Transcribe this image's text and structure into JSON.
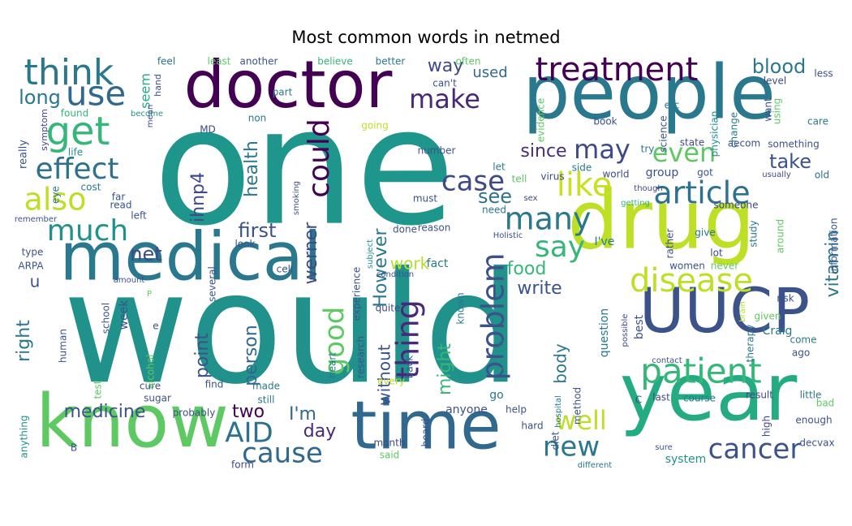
{
  "chart_data": {
    "type": "wordcloud",
    "title": "Most common words in netmed",
    "colormap": "viridis",
    "words": [
      {
        "text": "would",
        "weight": 1.0,
        "color": "#21918c"
      },
      {
        "text": "one",
        "weight": 0.95,
        "color": "#1f968b"
      },
      {
        "text": "people",
        "weight": 0.62,
        "color": "#2a788e"
      },
      {
        "text": "doctor",
        "weight": 0.55,
        "color": "#440154"
      },
      {
        "text": "drug",
        "weight": 0.6,
        "color": "#bddf26"
      },
      {
        "text": "year",
        "weight": 0.6,
        "color": "#25ab82"
      },
      {
        "text": "medical",
        "weight": 0.56,
        "color": "#2a788e"
      },
      {
        "text": "know",
        "weight": 0.5,
        "color": "#5ec962"
      },
      {
        "text": "time",
        "weight": 0.55,
        "color": "#31688e"
      },
      {
        "text": "UUCP",
        "weight": 0.42,
        "color": "#3b528b"
      },
      {
        "text": "treatment",
        "weight": 0.26,
        "color": "#440154"
      },
      {
        "text": "patient",
        "weight": 0.3,
        "color": "#35b779"
      },
      {
        "text": "disease",
        "weight": 0.27,
        "color": "#bddf26"
      },
      {
        "text": "article",
        "weight": 0.27,
        "color": "#2c728e"
      },
      {
        "text": "problem",
        "weight": 0.26,
        "color": "#3b528b"
      },
      {
        "text": "think",
        "weight": 0.24,
        "color": "#2a788e"
      },
      {
        "text": "use",
        "weight": 0.22,
        "color": "#31688e"
      },
      {
        "text": "get",
        "weight": 0.26,
        "color": "#35b779"
      },
      {
        "text": "effect",
        "weight": 0.21,
        "color": "#2c728e"
      },
      {
        "text": "also",
        "weight": 0.24,
        "color": "#bddf26"
      },
      {
        "text": "much",
        "weight": 0.2,
        "color": "#21918c"
      },
      {
        "text": "make",
        "weight": 0.2,
        "color": "#482878"
      },
      {
        "text": "like",
        "weight": 0.24,
        "color": "#c8e020"
      },
      {
        "text": "even",
        "weight": 0.2,
        "color": "#5ec962"
      },
      {
        "text": "may",
        "weight": 0.2,
        "color": "#3e4989"
      },
      {
        "text": "case",
        "weight": 0.22,
        "color": "#3e4989"
      },
      {
        "text": "many",
        "weight": 0.22,
        "color": "#2a788e"
      },
      {
        "text": "could",
        "weight": 0.2,
        "color": "#440154"
      },
      {
        "text": "say",
        "weight": 0.2,
        "color": "#35b779"
      },
      {
        "text": "good",
        "weight": 0.2,
        "color": "#5ec962"
      },
      {
        "text": "thing",
        "weight": 0.2,
        "color": "#482878"
      },
      {
        "text": "cancer",
        "weight": 0.2,
        "color": "#3b528b"
      },
      {
        "text": "cause",
        "weight": 0.2,
        "color": "#31688e"
      },
      {
        "text": "AID",
        "weight": 0.2,
        "color": "#2c728e"
      },
      {
        "text": "new",
        "weight": 0.19,
        "color": "#2a788e"
      },
      {
        "text": "well",
        "weight": 0.18,
        "color": "#bddf26"
      },
      {
        "text": "medicine",
        "weight": 0.14,
        "color": "#3b528b"
      },
      {
        "text": "blood",
        "weight": 0.14,
        "color": "#2a788e"
      },
      {
        "text": "long",
        "weight": 0.14,
        "color": "#2a788e"
      },
      {
        "text": "used",
        "weight": 0.12,
        "color": "#31688e"
      },
      {
        "text": "way",
        "weight": 0.15,
        "color": "#3e4989"
      },
      {
        "text": "take",
        "weight": 0.14,
        "color": "#3b528b"
      },
      {
        "text": "since",
        "weight": 0.14,
        "color": "#472d7b"
      },
      {
        "text": "see",
        "weight": 0.14,
        "color": "#2c728e"
      },
      {
        "text": "health",
        "weight": 0.13,
        "color": "#2a788e"
      },
      {
        "text": "first",
        "weight": 0.14,
        "color": "#3b528b"
      },
      {
        "text": "net",
        "weight": 0.14,
        "color": "#3e4989"
      },
      {
        "text": "werner",
        "weight": 0.13,
        "color": "#3e4989"
      },
      {
        "text": "However",
        "weight": 0.13,
        "color": "#2a788e"
      },
      {
        "text": "work",
        "weight": 0.12,
        "color": "#b5de2b"
      },
      {
        "text": "food",
        "weight": 0.13,
        "color": "#35b779"
      },
      {
        "text": "write",
        "weight": 0.13,
        "color": "#3b528b"
      },
      {
        "text": "vitamin",
        "weight": 0.14,
        "color": "#2a788e"
      },
      {
        "text": "person",
        "weight": 0.13,
        "color": "#31688e"
      },
      {
        "text": "point",
        "weight": 0.13,
        "color": "#3b528b"
      },
      {
        "text": "right",
        "weight": 0.13,
        "color": "#2a788e"
      },
      {
        "text": "ihnp4",
        "weight": 0.13,
        "color": "#3e4989"
      },
      {
        "text": "might",
        "weight": 0.14,
        "color": "#35b779"
      },
      {
        "text": "without",
        "weight": 0.13,
        "color": "#3b528b"
      },
      {
        "text": "body",
        "weight": 0.12,
        "color": "#2a788e"
      },
      {
        "text": "I'm",
        "weight": 0.14,
        "color": "#31688e"
      },
      {
        "text": "day",
        "weight": 0.14,
        "color": "#482878"
      },
      {
        "text": "two",
        "weight": 0.13,
        "color": "#440154"
      },
      {
        "text": "group",
        "weight": 0.1,
        "color": "#3b528b"
      },
      {
        "text": "seem",
        "weight": 0.1,
        "color": "#25ab82"
      },
      {
        "text": "really",
        "weight": 0.09,
        "color": "#3b528b"
      },
      {
        "text": "feel",
        "weight": 0.08,
        "color": "#2c728e"
      },
      {
        "text": "least",
        "weight": 0.07,
        "color": "#5ec962"
      },
      {
        "text": "another",
        "weight": 0.07,
        "color": "#3b528b"
      },
      {
        "text": "believe",
        "weight": 0.07,
        "color": "#35b779"
      },
      {
        "text": "better",
        "weight": 0.07,
        "color": "#2a788e"
      },
      {
        "text": "often",
        "weight": 0.07,
        "color": "#5ec962"
      },
      {
        "text": "can't",
        "weight": 0.07,
        "color": "#3b528b"
      },
      {
        "text": "part",
        "weight": 0.07,
        "color": "#2a788e"
      },
      {
        "text": "non",
        "weight": 0.07,
        "color": "#2a788e"
      },
      {
        "text": "going",
        "weight": 0.07,
        "color": "#bddf26"
      },
      {
        "text": "MD",
        "weight": 0.07,
        "color": "#3e4989"
      },
      {
        "text": "life",
        "weight": 0.07,
        "color": "#21918c"
      },
      {
        "text": "found",
        "weight": 0.07,
        "color": "#35b779"
      },
      {
        "text": "hand",
        "weight": 0.06,
        "color": "#3b528b"
      },
      {
        "text": "mean",
        "weight": 0.06,
        "color": "#3e4989"
      },
      {
        "text": "become",
        "weight": 0.06,
        "color": "#21918c"
      },
      {
        "text": "symptom",
        "weight": 0.06,
        "color": "#3e4989"
      },
      {
        "text": "etc",
        "weight": 0.07,
        "color": "#2a788e"
      },
      {
        "text": "evidence",
        "weight": 0.07,
        "color": "#5ec962"
      },
      {
        "text": "physician",
        "weight": 0.07,
        "color": "#21918c"
      },
      {
        "text": "change",
        "weight": 0.07,
        "color": "#2a788e"
      },
      {
        "text": "science",
        "weight": 0.07,
        "color": "#3b528b"
      },
      {
        "text": "book",
        "weight": 0.07,
        "color": "#3b528b"
      },
      {
        "text": "level",
        "weight": 0.07,
        "color": "#3e4989"
      },
      {
        "text": "want",
        "weight": 0.07,
        "color": "#3b528b"
      },
      {
        "text": "using",
        "weight": 0.06,
        "color": "#5ec962"
      },
      {
        "text": "less",
        "weight": 0.07,
        "color": "#3b528b"
      },
      {
        "text": "care",
        "weight": 0.07,
        "color": "#2a788e"
      },
      {
        "text": "something",
        "weight": 0.07,
        "color": "#3b528b"
      },
      {
        "text": "old",
        "weight": 0.06,
        "color": "#2c728e"
      },
      {
        "text": "usually",
        "weight": 0.06,
        "color": "#3e4989"
      },
      {
        "text": "state",
        "weight": 0.07,
        "color": "#3e4989"
      },
      {
        "text": "aecom",
        "weight": 0.07,
        "color": "#3b528b"
      },
      {
        "text": "try",
        "weight": 0.07,
        "color": "#2a788e"
      },
      {
        "text": "number",
        "weight": 0.07,
        "color": "#3b528b"
      },
      {
        "text": "let",
        "weight": 0.07,
        "color": "#2a788e"
      },
      {
        "text": "tell",
        "weight": 0.07,
        "color": "#5ec962"
      },
      {
        "text": "virus",
        "weight": 0.07,
        "color": "#3e4989"
      },
      {
        "text": "side",
        "weight": 0.07,
        "color": "#2a788e"
      },
      {
        "text": "world",
        "weight": 0.07,
        "color": "#3e4989"
      },
      {
        "text": "got",
        "weight": 0.07,
        "color": "#3b528b"
      },
      {
        "text": "though",
        "weight": 0.06,
        "color": "#3e4989"
      },
      {
        "text": "getting",
        "weight": 0.06,
        "color": "#35b779"
      },
      {
        "text": "someone",
        "weight": 0.06,
        "color": "#3e4989"
      },
      {
        "text": "study",
        "weight": 0.06,
        "color": "#2a788e"
      },
      {
        "text": "around",
        "weight": 0.06,
        "color": "#5ec962"
      },
      {
        "text": "information",
        "weight": 0.06,
        "color": "#3b528b"
      },
      {
        "text": "give",
        "weight": 0.07,
        "color": "#2c728e"
      },
      {
        "text": "rather",
        "weight": 0.06,
        "color": "#3e4989"
      },
      {
        "text": "lot",
        "weight": 0.07,
        "color": "#3e4989"
      },
      {
        "text": "women",
        "weight": 0.06,
        "color": "#3b528b"
      },
      {
        "text": "never",
        "weight": 0.06,
        "color": "#5ec962"
      },
      {
        "text": "risk",
        "weight": 0.07,
        "color": "#3b528b"
      },
      {
        "text": "given",
        "weight": 0.07,
        "color": "#5ec962"
      },
      {
        "text": "Craig",
        "weight": 0.07,
        "color": "#2a788e"
      },
      {
        "text": "therapy",
        "weight": 0.07,
        "color": "#2a788e"
      },
      {
        "text": "brain",
        "weight": 0.06,
        "color": "#b5de2b"
      },
      {
        "text": "come",
        "weight": 0.07,
        "color": "#2a788e"
      },
      {
        "text": "ago",
        "weight": 0.07,
        "color": "#3b528b"
      },
      {
        "text": "result",
        "weight": 0.07,
        "color": "#3e4989"
      },
      {
        "text": "little",
        "weight": 0.07,
        "color": "#2a788e"
      },
      {
        "text": "bad",
        "weight": 0.07,
        "color": "#5ec962"
      },
      {
        "text": "enough",
        "weight": 0.07,
        "color": "#3b528b"
      },
      {
        "text": "high",
        "weight": 0.07,
        "color": "#3e4989"
      },
      {
        "text": "decvax",
        "weight": 0.07,
        "color": "#3b528b"
      },
      {
        "text": "last",
        "weight": 0.07,
        "color": "#3e4989"
      },
      {
        "text": "course",
        "weight": 0.07,
        "color": "#2a788e"
      },
      {
        "text": "system",
        "weight": 0.07,
        "color": "#21918c"
      },
      {
        "text": "sure",
        "weight": 0.06,
        "color": "#3b528b"
      },
      {
        "text": "different",
        "weight": 0.06,
        "color": "#2a788e"
      },
      {
        "text": "C",
        "weight": 0.07,
        "color": "#3e4989"
      },
      {
        "text": "question",
        "weight": 0.07,
        "color": "#2a788e"
      },
      {
        "text": "best",
        "weight": 0.07,
        "color": "#3b528b"
      },
      {
        "text": "possible",
        "weight": 0.06,
        "color": "#3e4989"
      },
      {
        "text": "contact",
        "weight": 0.06,
        "color": "#3b528b"
      },
      {
        "text": "hospital",
        "weight": 0.06,
        "color": "#2a788e"
      },
      {
        "text": "actually",
        "weight": 0.06,
        "color": "#21918c"
      },
      {
        "text": "method",
        "weight": 0.06,
        "color": "#3b528b"
      },
      {
        "text": "diet",
        "weight": 0.06,
        "color": "#3b528b"
      },
      {
        "text": "hard",
        "weight": 0.07,
        "color": "#3b528b"
      },
      {
        "text": "help",
        "weight": 0.07,
        "color": "#3b528b"
      },
      {
        "text": "anyone",
        "weight": 0.07,
        "color": "#3b528b"
      },
      {
        "text": "go",
        "weight": 0.07,
        "color": "#2a788e"
      },
      {
        "text": "heard",
        "weight": 0.07,
        "color": "#3b528b"
      },
      {
        "text": "month",
        "weight": 0.07,
        "color": "#3e4989"
      },
      {
        "text": "said",
        "weight": 0.07,
        "color": "#5ec962"
      },
      {
        "text": "form",
        "weight": 0.07,
        "color": "#3e4989"
      },
      {
        "text": "every",
        "weight": 0.07,
        "color": "#bddf26"
      },
      {
        "text": "back",
        "weight": 0.07,
        "color": "#3b528b"
      },
      {
        "text": "heart",
        "weight": 0.07,
        "color": "#2a788e"
      },
      {
        "text": "research",
        "weight": 0.07,
        "color": "#3b528b"
      },
      {
        "text": "quite",
        "weight": 0.07,
        "color": "#3e4989"
      },
      {
        "text": "known",
        "weight": 0.07,
        "color": "#2a788e"
      },
      {
        "text": "experience",
        "weight": 0.07,
        "color": "#3b528b"
      },
      {
        "text": "subject",
        "weight": 0.06,
        "color": "#21918c"
      },
      {
        "text": "condition",
        "weight": 0.06,
        "color": "#3b528b"
      },
      {
        "text": "Holistic",
        "weight": 0.06,
        "color": "#3b528b"
      },
      {
        "text": "I've",
        "weight": 0.07,
        "color": "#2a788e"
      },
      {
        "text": "fact",
        "weight": 0.07,
        "color": "#2a788e"
      },
      {
        "text": "reason",
        "weight": 0.07,
        "color": "#3b528b"
      },
      {
        "text": "done",
        "weight": 0.07,
        "color": "#3b528b"
      },
      {
        "text": "need",
        "weight": 0.07,
        "color": "#2a788e"
      },
      {
        "text": "sex",
        "weight": 0.06,
        "color": "#3e4989"
      },
      {
        "text": "must",
        "weight": 0.07,
        "color": "#3b528b"
      },
      {
        "text": "cell",
        "weight": 0.07,
        "color": "#3b528b"
      },
      {
        "text": "look",
        "weight": 0.07,
        "color": "#3b528b"
      },
      {
        "text": "smoking",
        "weight": 0.06,
        "color": "#3b528b"
      },
      {
        "text": "several",
        "weight": 0.07,
        "color": "#3b528b"
      },
      {
        "text": "still",
        "weight": 0.07,
        "color": "#2a788e"
      },
      {
        "text": "made",
        "weight": 0.07,
        "color": "#2a788e"
      },
      {
        "text": "sugar",
        "weight": 0.07,
        "color": "#3b528b"
      },
      {
        "text": "cure",
        "weight": 0.07,
        "color": "#3b528b"
      },
      {
        "text": "probably",
        "weight": 0.07,
        "color": "#3b528b"
      },
      {
        "text": "alcohol",
        "weight": 0.07,
        "color": "#5ec962"
      },
      {
        "text": "find",
        "weight": 0.07,
        "color": "#3b528b"
      },
      {
        "text": "test",
        "weight": 0.06,
        "color": "#5ec962"
      },
      {
        "text": "week",
        "weight": 0.08,
        "color": "#3b528b"
      },
      {
        "text": "school",
        "weight": 0.07,
        "color": "#3b528b"
      },
      {
        "text": "human",
        "weight": 0.07,
        "color": "#3b528b"
      },
      {
        "text": "amount",
        "weight": 0.06,
        "color": "#3b528b"
      },
      {
        "text": "u",
        "weight": 0.09,
        "color": "#3b528b"
      },
      {
        "text": "ARPA",
        "weight": 0.07,
        "color": "#3b528b"
      },
      {
        "text": "type",
        "weight": 0.07,
        "color": "#3b528b"
      },
      {
        "text": "remember",
        "weight": 0.06,
        "color": "#3b528b"
      },
      {
        "text": "eye",
        "weight": 0.07,
        "color": "#2a788e"
      },
      {
        "text": "cost",
        "weight": 0.07,
        "color": "#2a788e"
      },
      {
        "text": "far",
        "weight": 0.07,
        "color": "#3b528b"
      },
      {
        "text": "read",
        "weight": 0.07,
        "color": "#3b528b"
      },
      {
        "text": "left",
        "weight": 0.07,
        "color": "#3b528b"
      },
      {
        "text": "anything",
        "weight": 0.07,
        "color": "#21918c"
      },
      {
        "text": "B",
        "weight": 0.07,
        "color": "#3b528b"
      },
      {
        "text": "P",
        "weight": 0.06,
        "color": "#5ec962"
      },
      {
        "text": "e",
        "weight": 0.06,
        "color": "#3b528b"
      }
    ]
  }
}
